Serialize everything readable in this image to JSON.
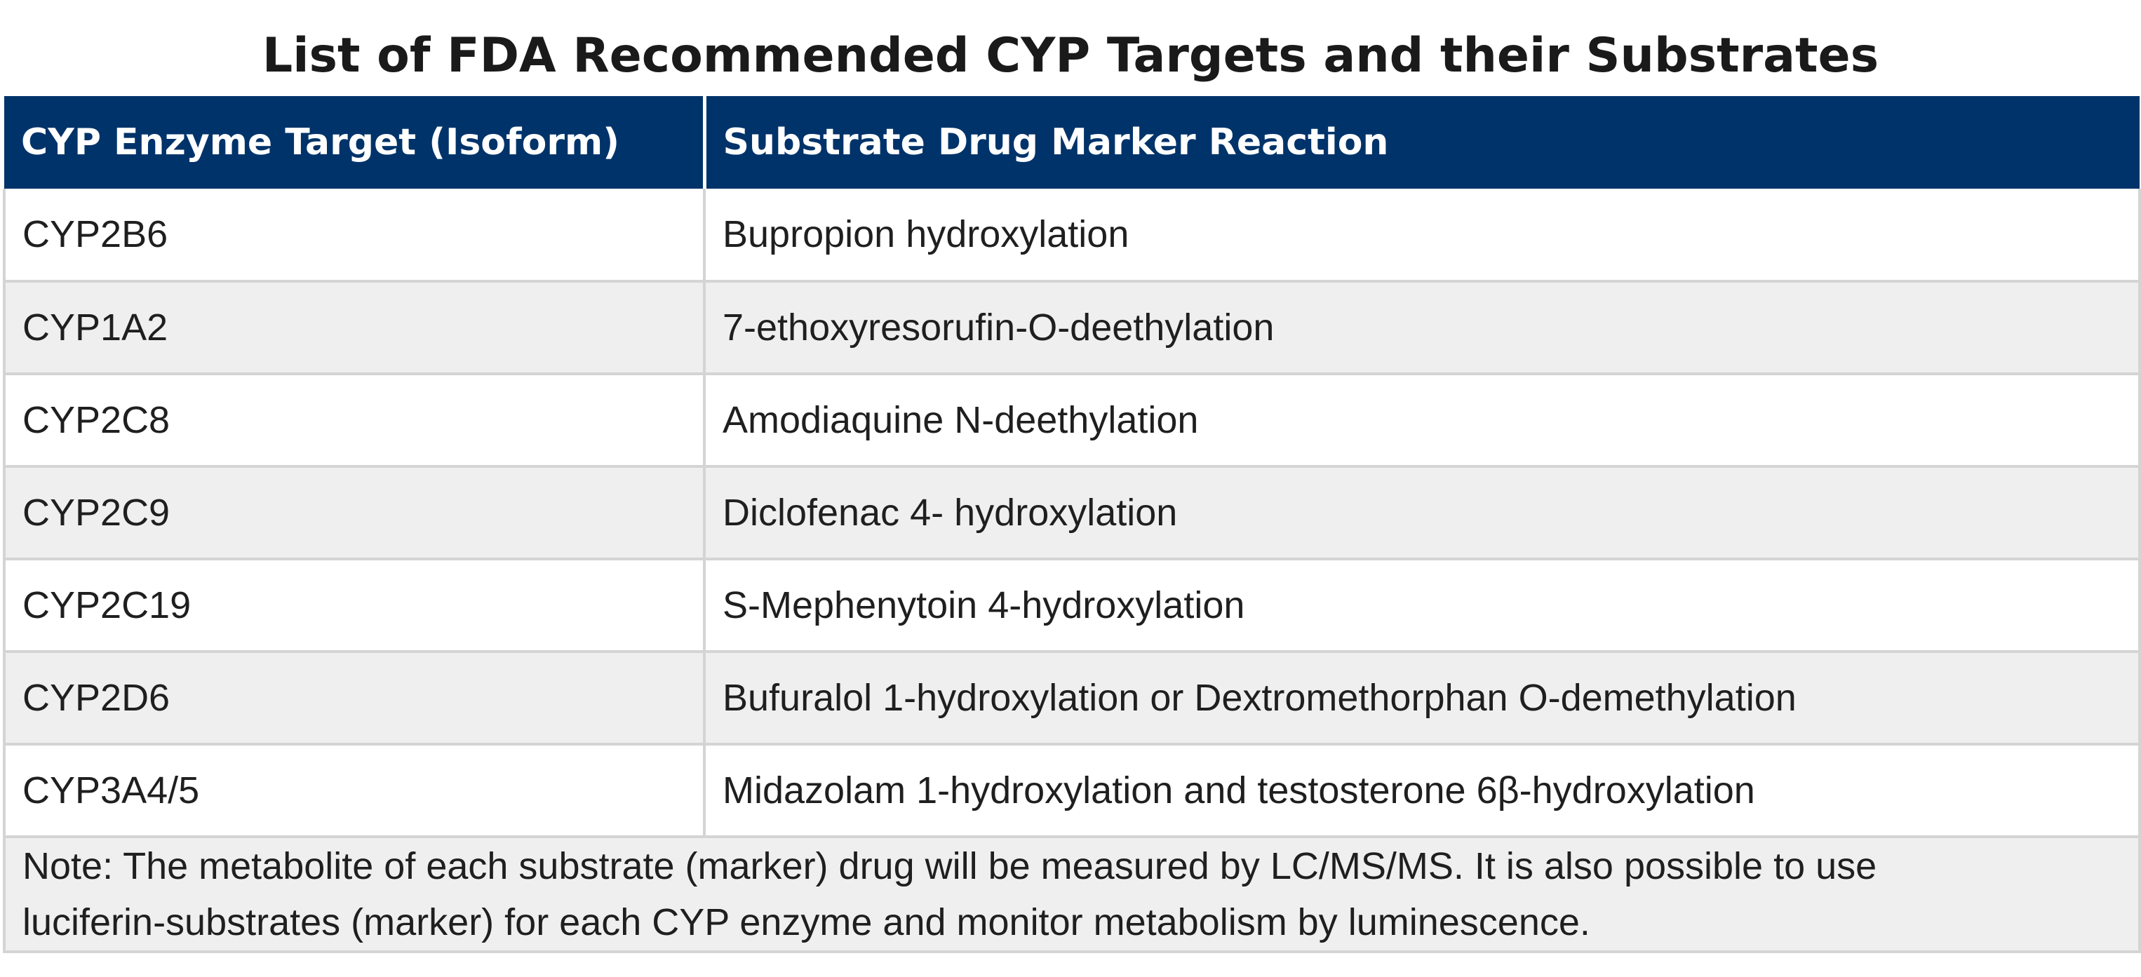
{
  "title": "List of FDA Recommended CYP Targets and their Substrates",
  "table": {
    "headers": [
      "CYP Enzyme Target (Isoform)",
      "Substrate Drug Marker Reaction"
    ],
    "rows": [
      {
        "enzyme": "CYP2B6",
        "reaction": "Bupropion hydroxylation"
      },
      {
        "enzyme": "CYP1A2",
        "reaction": "7-ethoxyresorufin-O-deethylation"
      },
      {
        "enzyme": "CYP2C8",
        "reaction": "Amodiaquine N-deethylation"
      },
      {
        "enzyme": "CYP2C9",
        "reaction": "Diclofenac 4- hydroxylation"
      },
      {
        "enzyme": "CYP2C19",
        "reaction": "S-Mephenytoin 4-hydroxylation"
      },
      {
        "enzyme": "CYP2D6",
        "reaction": "Bufuralol 1-hydroxylation or Dextromethorphan O-demethylation"
      },
      {
        "enzyme": "CYP3A4/5",
        "reaction": "Midazolam 1-hydroxylation and testosterone 6β-hydroxylation"
      }
    ],
    "note_line1": "Note: The metabolite of each substrate (marker) drug will be measured by LC/MS/MS. It is also possible to use",
    "note_line2": "luciferin-substrates (marker) for each CYP enzyme and monitor metabolism by luminescence."
  },
  "colors": {
    "header_bg": "#00336a",
    "header_text": "#ffffff",
    "alt_row_bg": "#efefef",
    "border": "#d4d4d4"
  }
}
